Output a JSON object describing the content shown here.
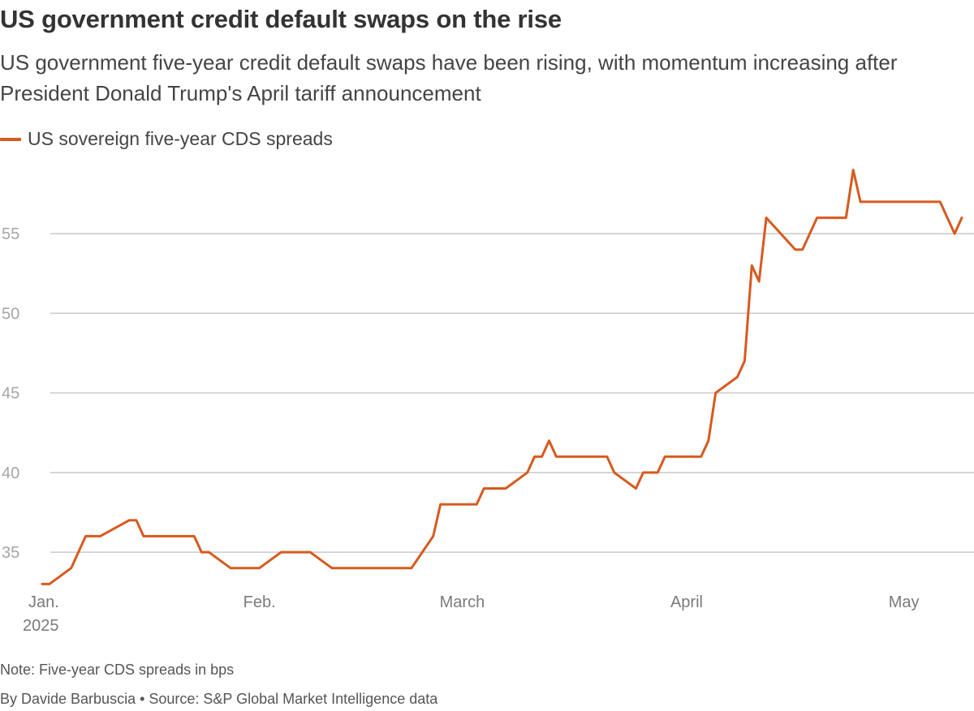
{
  "header": {
    "title": "US government credit default swaps on the rise",
    "subtitle": "US government five-year credit default swaps have been rising, with momentum increasing after President Donald Trump's April tariff announcement"
  },
  "footer": {
    "note": "Note: Five-year CDS spreads in bps",
    "credit": "By Davide Barbuscia • Source: S&P Global Market Intelligence data"
  },
  "colors": {
    "series": "#d75a1e"
  },
  "chart_data": {
    "type": "line",
    "title": "US government credit default swaps on the rise",
    "subtitle": "US government five-year credit default swaps have been rising, with momentum increasing after President Donald Trump's April tariff announcement",
    "xlabel": "",
    "ylabel": "",
    "x_range": [
      "2025-01-02",
      "2025-05-09"
    ],
    "ylim": [
      32,
      60
    ],
    "y_ticks": [
      35,
      40,
      45,
      50,
      55
    ],
    "x_ticks": [
      {
        "date": "2025-01-01",
        "label": "Jan.",
        "sublabel": "2025"
      },
      {
        "date": "2025-02-01",
        "label": "Feb.",
        "sublabel": ""
      },
      {
        "date": "2025-03-01",
        "label": "March",
        "sublabel": ""
      },
      {
        "date": "2025-04-01",
        "label": "April",
        "sublabel": ""
      },
      {
        "date": "2025-05-01",
        "label": "May",
        "sublabel": ""
      }
    ],
    "grid": "horizontal",
    "legend": "top-left",
    "series": [
      {
        "name": "US sovereign five-year CDS spreads",
        "color": "#d75a1e",
        "points": [
          [
            "2025-01-02",
            33
          ],
          [
            "2025-01-03",
            33
          ],
          [
            "2025-01-06",
            34
          ],
          [
            "2025-01-08",
            36
          ],
          [
            "2025-01-10",
            36
          ],
          [
            "2025-01-14",
            37
          ],
          [
            "2025-01-15",
            37
          ],
          [
            "2025-01-16",
            36
          ],
          [
            "2025-01-23",
            36
          ],
          [
            "2025-01-24",
            35
          ],
          [
            "2025-01-25",
            35
          ],
          [
            "2025-01-28",
            34
          ],
          [
            "2025-02-01",
            34
          ],
          [
            "2025-02-04",
            35
          ],
          [
            "2025-02-08",
            35
          ],
          [
            "2025-02-11",
            34
          ],
          [
            "2025-02-22",
            34
          ],
          [
            "2025-02-25",
            36
          ],
          [
            "2025-02-26",
            38
          ],
          [
            "2025-03-02",
            38
          ],
          [
            "2025-03-03",
            38
          ],
          [
            "2025-03-04",
            39
          ],
          [
            "2025-03-07",
            39
          ],
          [
            "2025-03-10",
            40
          ],
          [
            "2025-03-11",
            41
          ],
          [
            "2025-03-12",
            41
          ],
          [
            "2025-03-13",
            42
          ],
          [
            "2025-03-14",
            41
          ],
          [
            "2025-03-21",
            41
          ],
          [
            "2025-03-22",
            40
          ],
          [
            "2025-03-25",
            39
          ],
          [
            "2025-03-26",
            40
          ],
          [
            "2025-03-28",
            40
          ],
          [
            "2025-03-29",
            41
          ],
          [
            "2025-04-03",
            41
          ],
          [
            "2025-04-04",
            42
          ],
          [
            "2025-04-05",
            45
          ],
          [
            "2025-04-08",
            46
          ],
          [
            "2025-04-09",
            47
          ],
          [
            "2025-04-10",
            53
          ],
          [
            "2025-04-11",
            52
          ],
          [
            "2025-04-12",
            56
          ],
          [
            "2025-04-16",
            54
          ],
          [
            "2025-04-17",
            54
          ],
          [
            "2025-04-19",
            56
          ],
          [
            "2025-04-23",
            56
          ],
          [
            "2025-04-24",
            59
          ],
          [
            "2025-04-25",
            57
          ],
          [
            "2025-05-06",
            57
          ],
          [
            "2025-05-08",
            55
          ],
          [
            "2025-05-09",
            56
          ]
        ]
      }
    ]
  }
}
